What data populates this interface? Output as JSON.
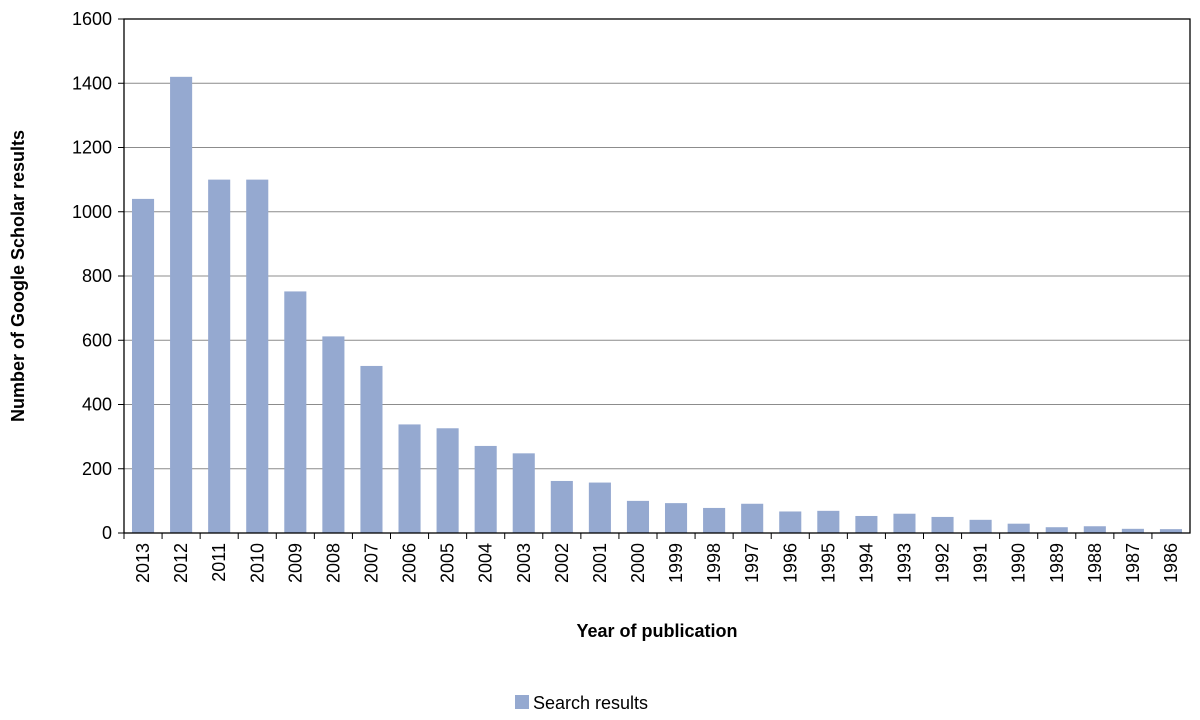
{
  "chart_data": {
    "type": "bar",
    "title": "",
    "xlabel": "Year of publication",
    "ylabel": "Number of Google Scholar results",
    "ylim": [
      0,
      1600
    ],
    "ytick_step": 200,
    "grid": true,
    "legend_position": "bottom-center",
    "categories": [
      "2013",
      "2012",
      "2011",
      "2010",
      "2009",
      "2008",
      "2007",
      "2006",
      "2005",
      "2004",
      "2003",
      "2002",
      "2001",
      "2000",
      "1999",
      "1998",
      "1997",
      "1996",
      "1995",
      "1994",
      "1993",
      "1992",
      "1991",
      "1990",
      "1989",
      "1988",
      "1987",
      "1986"
    ],
    "series": [
      {
        "name": "Search results",
        "color": "#95A9D0",
        "values": [
          1040,
          1420,
          1100,
          1100,
          752,
          612,
          520,
          338,
          326,
          271,
          248,
          162,
          157,
          100,
          93,
          78,
          91,
          67,
          69,
          53,
          60,
          50,
          41,
          29,
          18,
          21,
          13,
          12
        ]
      }
    ]
  }
}
